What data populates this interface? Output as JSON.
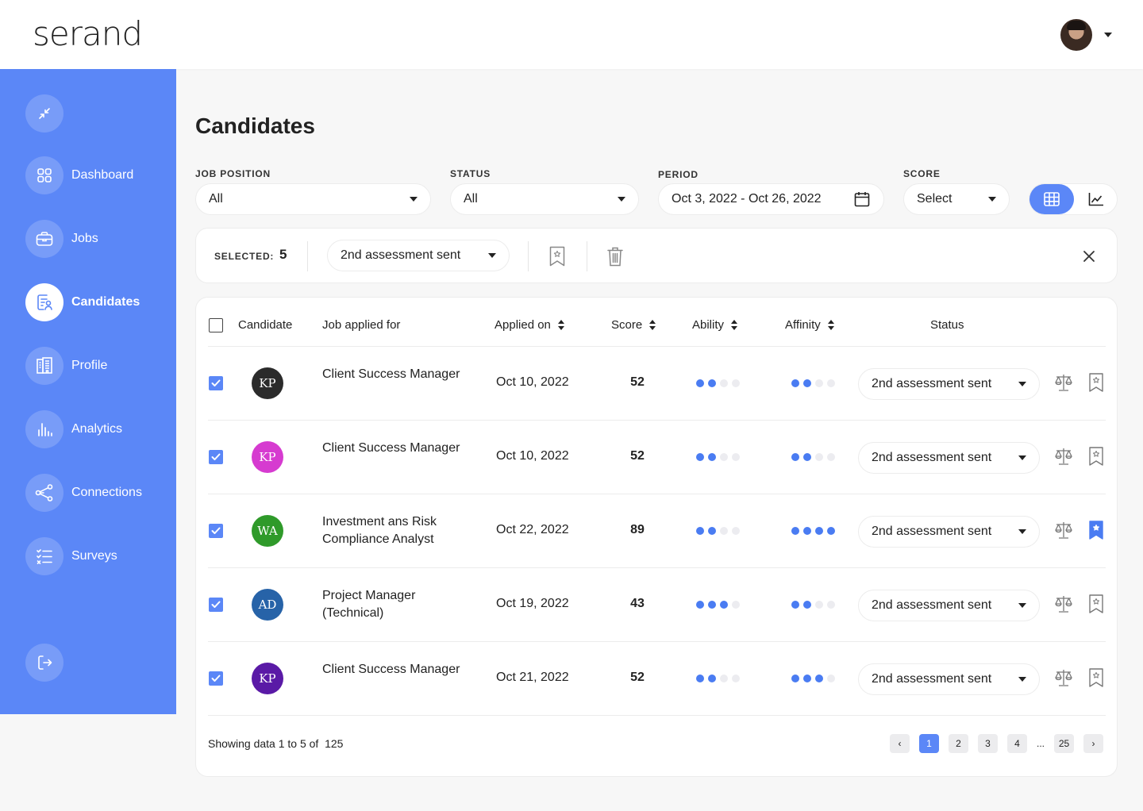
{
  "brand": {
    "logo": "serand"
  },
  "sidebar": {
    "items": [
      {
        "label": "",
        "icon": "collapse-icon"
      },
      {
        "label": "Dashboard",
        "icon": "grid-icon"
      },
      {
        "label": "Jobs",
        "icon": "briefcase-icon"
      },
      {
        "label": "Candidates",
        "icon": "candidates-icon",
        "active": true
      },
      {
        "label": "Profile",
        "icon": "building-icon"
      },
      {
        "label": "Analytics",
        "icon": "bar-chart-icon"
      },
      {
        "label": "Connections",
        "icon": "share-icon"
      },
      {
        "label": "Surveys",
        "icon": "checklist-icon"
      },
      {
        "label": "",
        "icon": "logout-icon"
      }
    ]
  },
  "page": {
    "title": "Candidates"
  },
  "filters": {
    "job_position": {
      "label": "JOB POSITION",
      "value": "All"
    },
    "status": {
      "label": "STATUS",
      "value": "All"
    },
    "period": {
      "label": "PERIOD",
      "value": "Oct 3, 2022 - Oct 26, 2022"
    },
    "score": {
      "label": "SCORE",
      "value": "Select"
    }
  },
  "view_toggle": {
    "active": "table",
    "options": [
      "table-icon",
      "line-chart-icon"
    ]
  },
  "selection": {
    "label": "SELECTED:",
    "count": "5",
    "status": "2nd assessment sent"
  },
  "table": {
    "columns": {
      "candidate": "Candidate",
      "job": "Job applied for",
      "applied": "Applied on",
      "score": "Score",
      "ability": "Ability",
      "affinity": "Affinity",
      "status": "Status"
    },
    "rows": [
      {
        "initials": "KP",
        "avatar_color": "#2b2b2b",
        "job": "Client Success Manager",
        "applied": "Oct 10, 2022",
        "score": "52",
        "ability": 2,
        "affinity": 2,
        "status": "2nd assessment sent",
        "bookmarked": false,
        "checked": true
      },
      {
        "initials": "KP",
        "avatar_color": "#d63bd0",
        "job": "Client Success Manager",
        "applied": "Oct 10, 2022",
        "score": "52",
        "ability": 2,
        "affinity": 2,
        "status": "2nd assessment sent",
        "bookmarked": false,
        "checked": true
      },
      {
        "initials": "WA",
        "avatar_color": "#2f9a2a",
        "job": "Investment ans Risk Compliance Analyst",
        "applied": "Oct 22, 2022",
        "score": "89",
        "ability": 2,
        "affinity": 4,
        "status": "2nd assessment sent",
        "bookmarked": true,
        "checked": true
      },
      {
        "initials": "AD",
        "avatar_color": "#2763a8",
        "job": "Project Manager (Technical)",
        "applied": "Oct 19, 2022",
        "score": "43",
        "ability": 3,
        "affinity": 2,
        "status": "2nd assessment sent",
        "bookmarked": false,
        "checked": true
      },
      {
        "initials": "KP",
        "avatar_color": "#5a1aa6",
        "job": "Client Success Manager",
        "applied": "Oct 21, 2022",
        "score": "52",
        "ability": 2,
        "affinity": 3,
        "status": "2nd assessment sent",
        "bookmarked": false,
        "checked": true
      }
    ]
  },
  "footer": {
    "showing": "Showing data 1 to 5 of",
    "total": "125",
    "pages": [
      "‹",
      "1",
      "2",
      "3",
      "4",
      "...",
      "25",
      "›"
    ],
    "current_page": "1"
  },
  "colors": {
    "accent": "#5b87f7",
    "dot_on": "#4a7cf2",
    "dot_off": "#ececf0"
  }
}
